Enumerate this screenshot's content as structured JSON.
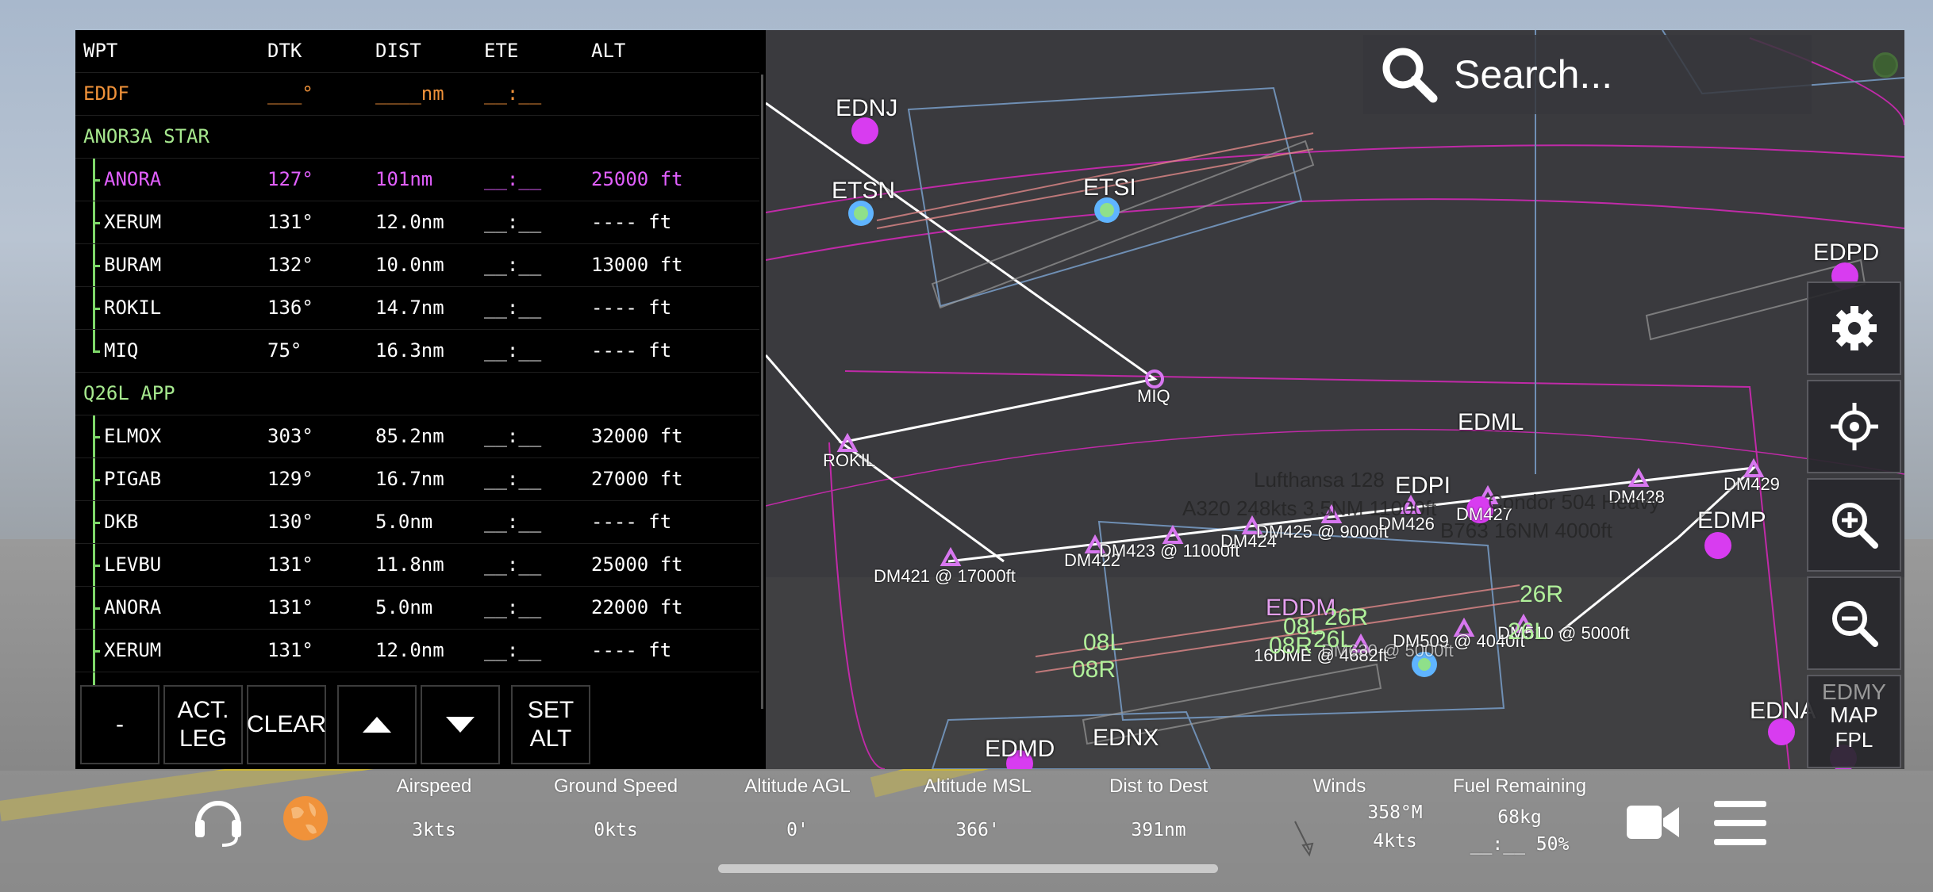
{
  "flight_plan": {
    "headers": {
      "wpt": "WPT",
      "dtk": "DTK",
      "dist": "DIST",
      "ete": "ETE",
      "alt": "ALT"
    },
    "origin": {
      "wpt": "EDDF",
      "dtk": "___°",
      "dist": "____nm",
      "ete": "__:__",
      "alt": ""
    },
    "sections": [
      {
        "label": "ANOR3A STAR",
        "rows": [
          {
            "wpt": "ANORA",
            "dtk": "127°",
            "dist": "101nm",
            "ete": "__:__",
            "alt": "25000 ft",
            "active": true
          },
          {
            "wpt": "XERUM",
            "dtk": "131°",
            "dist": "12.0nm",
            "ete": "__:__",
            "alt": "---- ft"
          },
          {
            "wpt": "BURAM",
            "dtk": "132°",
            "dist": "10.0nm",
            "ete": "__:__",
            "alt": "13000 ft"
          },
          {
            "wpt": "ROKIL",
            "dtk": "136°",
            "dist": "14.7nm",
            "ete": "__:__",
            "alt": "---- ft"
          },
          {
            "wpt": "MIQ",
            "dtk": "75°",
            "dist": "16.3nm",
            "ete": "__:__",
            "alt": "---- ft"
          }
        ]
      },
      {
        "label": "Q26L APP",
        "rows": [
          {
            "wpt": "ELMOX",
            "dtk": "303°",
            "dist": "85.2nm",
            "ete": "__:__",
            "alt": "32000 ft"
          },
          {
            "wpt": "PIGAB",
            "dtk": "129°",
            "dist": "16.7nm",
            "ete": "__:__",
            "alt": "27000 ft"
          },
          {
            "wpt": "DKB",
            "dtk": "130°",
            "dist": "5.0nm",
            "ete": "__:__",
            "alt": "---- ft"
          },
          {
            "wpt": "LEVBU",
            "dtk": "131°",
            "dist": "11.8nm",
            "ete": "__:__",
            "alt": "25000 ft"
          },
          {
            "wpt": "ANORA",
            "dtk": "131°",
            "dist": "5.0nm",
            "ete": "__:__",
            "alt": "22000 ft"
          },
          {
            "wpt": "XERUM",
            "dtk": "131°",
            "dist": "12.0nm",
            "ete": "__:__",
            "alt": "---- ft"
          }
        ]
      }
    ],
    "buttons": {
      "remove": "-",
      "act_leg": "ACT. LEG",
      "clear": "CLEAR",
      "set_alt": "SET ALT"
    }
  },
  "map": {
    "search_placeholder": "Search...",
    "airports": [
      "EDNJ",
      "ETSN",
      "ETSI",
      "EDPD",
      "EDML",
      "EDPI",
      "EDMP",
      "EDNA",
      "EDMD",
      "EDNX",
      "EDDM",
      "EDMY"
    ],
    "waypoints": [
      "MIQ",
      "ROKIL",
      "DM421 @ 17000ft",
      "DM422",
      "DM423 @ 11000ft",
      "DM424",
      "DM425 @ 9000ft",
      "DM426",
      "DM427",
      "DM428",
      "DM429",
      "16DME @ 4682ft",
      "DM509 @ 4040ft",
      "DM510 @ 5000ft",
      "DM630 @ 5000ft"
    ],
    "runways": [
      "08L",
      "08R",
      "26L",
      "26R",
      "08L",
      "26R",
      "08R",
      "26L"
    ],
    "traffic": [
      "Lufthansa 128",
      "A320 248kts 3.5NM 11000ft",
      "Condor 504 Heavy",
      "B763 16NM 4000ft"
    ],
    "mode_buttons": {
      "map": "MAP",
      "fpl": "FPL",
      "airport": "EDMY"
    }
  },
  "bottom_bar": {
    "stats": [
      {
        "label": "Airspeed",
        "value": "3kts"
      },
      {
        "label": "Ground Speed",
        "value": "0kts"
      },
      {
        "label": "Altitude AGL",
        "value": "0'"
      },
      {
        "label": "Altitude MSL",
        "value": "366'"
      },
      {
        "label": "Dist to Dest",
        "value": "391nm"
      },
      {
        "label": "Winds",
        "value": "358°M",
        "value2": "4kts"
      },
      {
        "label": "Fuel Remaining",
        "value": "68kg",
        "value2": "__:__ 50%"
      }
    ]
  },
  "colors": {
    "active": "#e260ff",
    "section": "#a6e88e",
    "origin": "#f0923a",
    "airport": "#d83cf0",
    "navaid": "#5fb4ff"
  },
  "icons": [
    "headset-icon",
    "globe-icon",
    "search-icon",
    "gear-icon",
    "locate-icon",
    "zoom-in-icon",
    "zoom-out-icon",
    "camera-icon",
    "menu-icon",
    "chevron-up-icon",
    "chevron-down-icon"
  ]
}
